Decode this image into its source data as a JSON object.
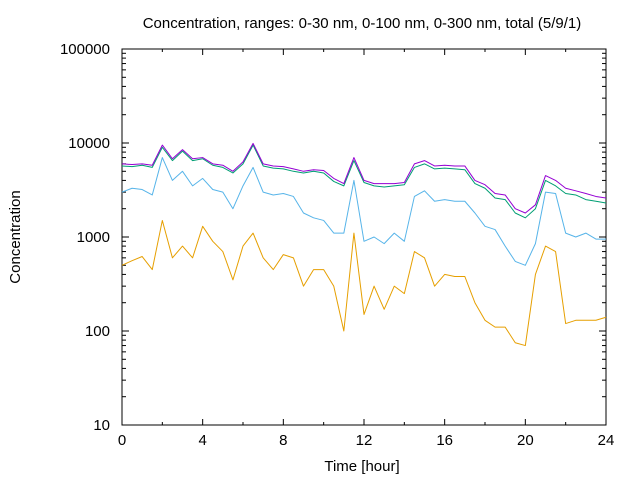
{
  "chart_data": {
    "type": "line",
    "title": "Concentration, ranges: 0-30 nm, 0-100 nm, 0-300 nm, total (5/9/1)",
    "xlabel": "Time [hour]",
    "ylabel": "Concentration",
    "xlim": [
      0,
      24
    ],
    "ylim": [
      10,
      100000
    ],
    "yscale": "log",
    "x_ticks": [
      "0",
      "4",
      "8",
      "12",
      "16",
      "20",
      "24"
    ],
    "y_ticks": [
      "10",
      "100",
      "1000",
      "10000",
      "100000"
    ],
    "grid": false,
    "colors": {
      "0-30 nm": "#e69f00",
      "0-100 nm": "#56b4e9",
      "0-300 nm": "#009e73",
      "total": "#9400d3"
    },
    "x": [
      0,
      0.5,
      1,
      1.5,
      2,
      2.5,
      3,
      3.5,
      4,
      4.5,
      5,
      5.5,
      6,
      6.5,
      7,
      7.5,
      8,
      8.5,
      9,
      9.5,
      10,
      10.5,
      11,
      11.5,
      12,
      12.5,
      13,
      13.5,
      14,
      14.5,
      15,
      15.5,
      16,
      16.5,
      17,
      17.5,
      18,
      18.5,
      19,
      19.5,
      20,
      20.5,
      21,
      21.5,
      22,
      22.5,
      23,
      23.5,
      24
    ],
    "series": [
      {
        "name": "0-30 nm",
        "values": [
          500,
          560,
          620,
          450,
          1500,
          600,
          800,
          600,
          1300,
          900,
          700,
          350,
          800,
          1100,
          600,
          450,
          650,
          600,
          300,
          450,
          450,
          300,
          100,
          1100,
          150,
          300,
          170,
          300,
          250,
          700,
          600,
          300,
          400,
          380,
          380,
          200,
          130,
          110,
          110,
          75,
          70,
          400,
          800,
          700,
          120,
          130,
          130,
          130,
          140
        ]
      },
      {
        "name": "0-100 nm",
        "values": [
          3000,
          3300,
          3200,
          2800,
          7000,
          4000,
          5000,
          3500,
          4200,
          3200,
          3000,
          2000,
          3500,
          5500,
          3000,
          2800,
          2900,
          2700,
          1800,
          1600,
          1500,
          1100,
          1100,
          4000,
          900,
          1000,
          850,
          1100,
          900,
          2700,
          3100,
          2400,
          2500,
          2400,
          2400,
          1800,
          1300,
          1200,
          800,
          550,
          500,
          850,
          3000,
          2900,
          1100,
          1000,
          1100,
          950,
          950
        ]
      },
      {
        "name": "0-300 nm",
        "values": [
          5700,
          5600,
          5800,
          5500,
          9000,
          6500,
          8200,
          6500,
          6800,
          5800,
          5500,
          4800,
          6000,
          9500,
          5700,
          5400,
          5300,
          5000,
          4800,
          5000,
          4800,
          3900,
          3500,
          6500,
          3800,
          3500,
          3400,
          3500,
          3600,
          5500,
          6000,
          5300,
          5400,
          5300,
          5200,
          3700,
          3300,
          2600,
          2500,
          1800,
          1600,
          2000,
          4000,
          3500,
          2900,
          2800,
          2500,
          2400,
          2300
        ]
      },
      {
        "name": "total",
        "values": [
          6000,
          5900,
          6000,
          5800,
          9500,
          6800,
          8500,
          6800,
          7000,
          6000,
          5800,
          5000,
          6300,
          9900,
          6000,
          5700,
          5600,
          5300,
          5000,
          5200,
          5100,
          4200,
          3700,
          7000,
          4000,
          3700,
          3700,
          3700,
          3800,
          6000,
          6500,
          5700,
          5800,
          5700,
          5700,
          4000,
          3600,
          2900,
          2800,
          2000,
          1800,
          2200,
          4500,
          4000,
          3300,
          3100,
          2900,
          2700,
          2600
        ]
      }
    ]
  }
}
